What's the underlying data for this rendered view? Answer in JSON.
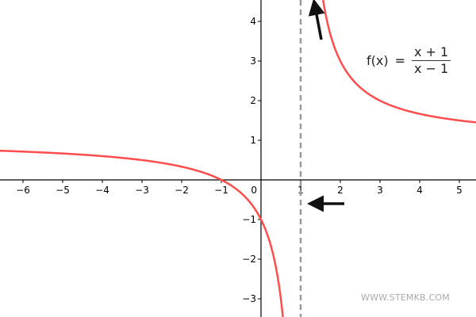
{
  "chart_data": {
    "type": "line",
    "function": "(x+1)/(x-1)",
    "formula": {
      "lhs": "f(x)",
      "eq": "=",
      "numerator": "x + 1",
      "denominator": "x − 1"
    },
    "xlim": [
      -6.58,
      5.42
    ],
    "ylim": [
      -3.46,
      4.54
    ],
    "x_ticks": [
      -6,
      -5,
      -4,
      -3,
      -2,
      -1,
      1,
      2,
      3,
      4,
      5
    ],
    "y_ticks": [
      -3,
      -2,
      -1,
      1,
      2,
      3,
      4
    ],
    "origin_label": "0",
    "vertical_asymptote": 1,
    "grid": false,
    "annotations": [
      {
        "type": "arrow",
        "from": [
          2.1,
          -0.6
        ],
        "to": [
          1.3,
          -0.6
        ]
      },
      {
        "type": "arrow",
        "from": [
          1.52,
          3.54
        ],
        "to": [
          1.35,
          4.44
        ]
      }
    ],
    "colors": {
      "curve": "#ff4d4d",
      "asymptote": "#999999",
      "axes": "#000000",
      "arrow": "#111111"
    }
  },
  "watermark": "WWW.STEMKB.COM"
}
